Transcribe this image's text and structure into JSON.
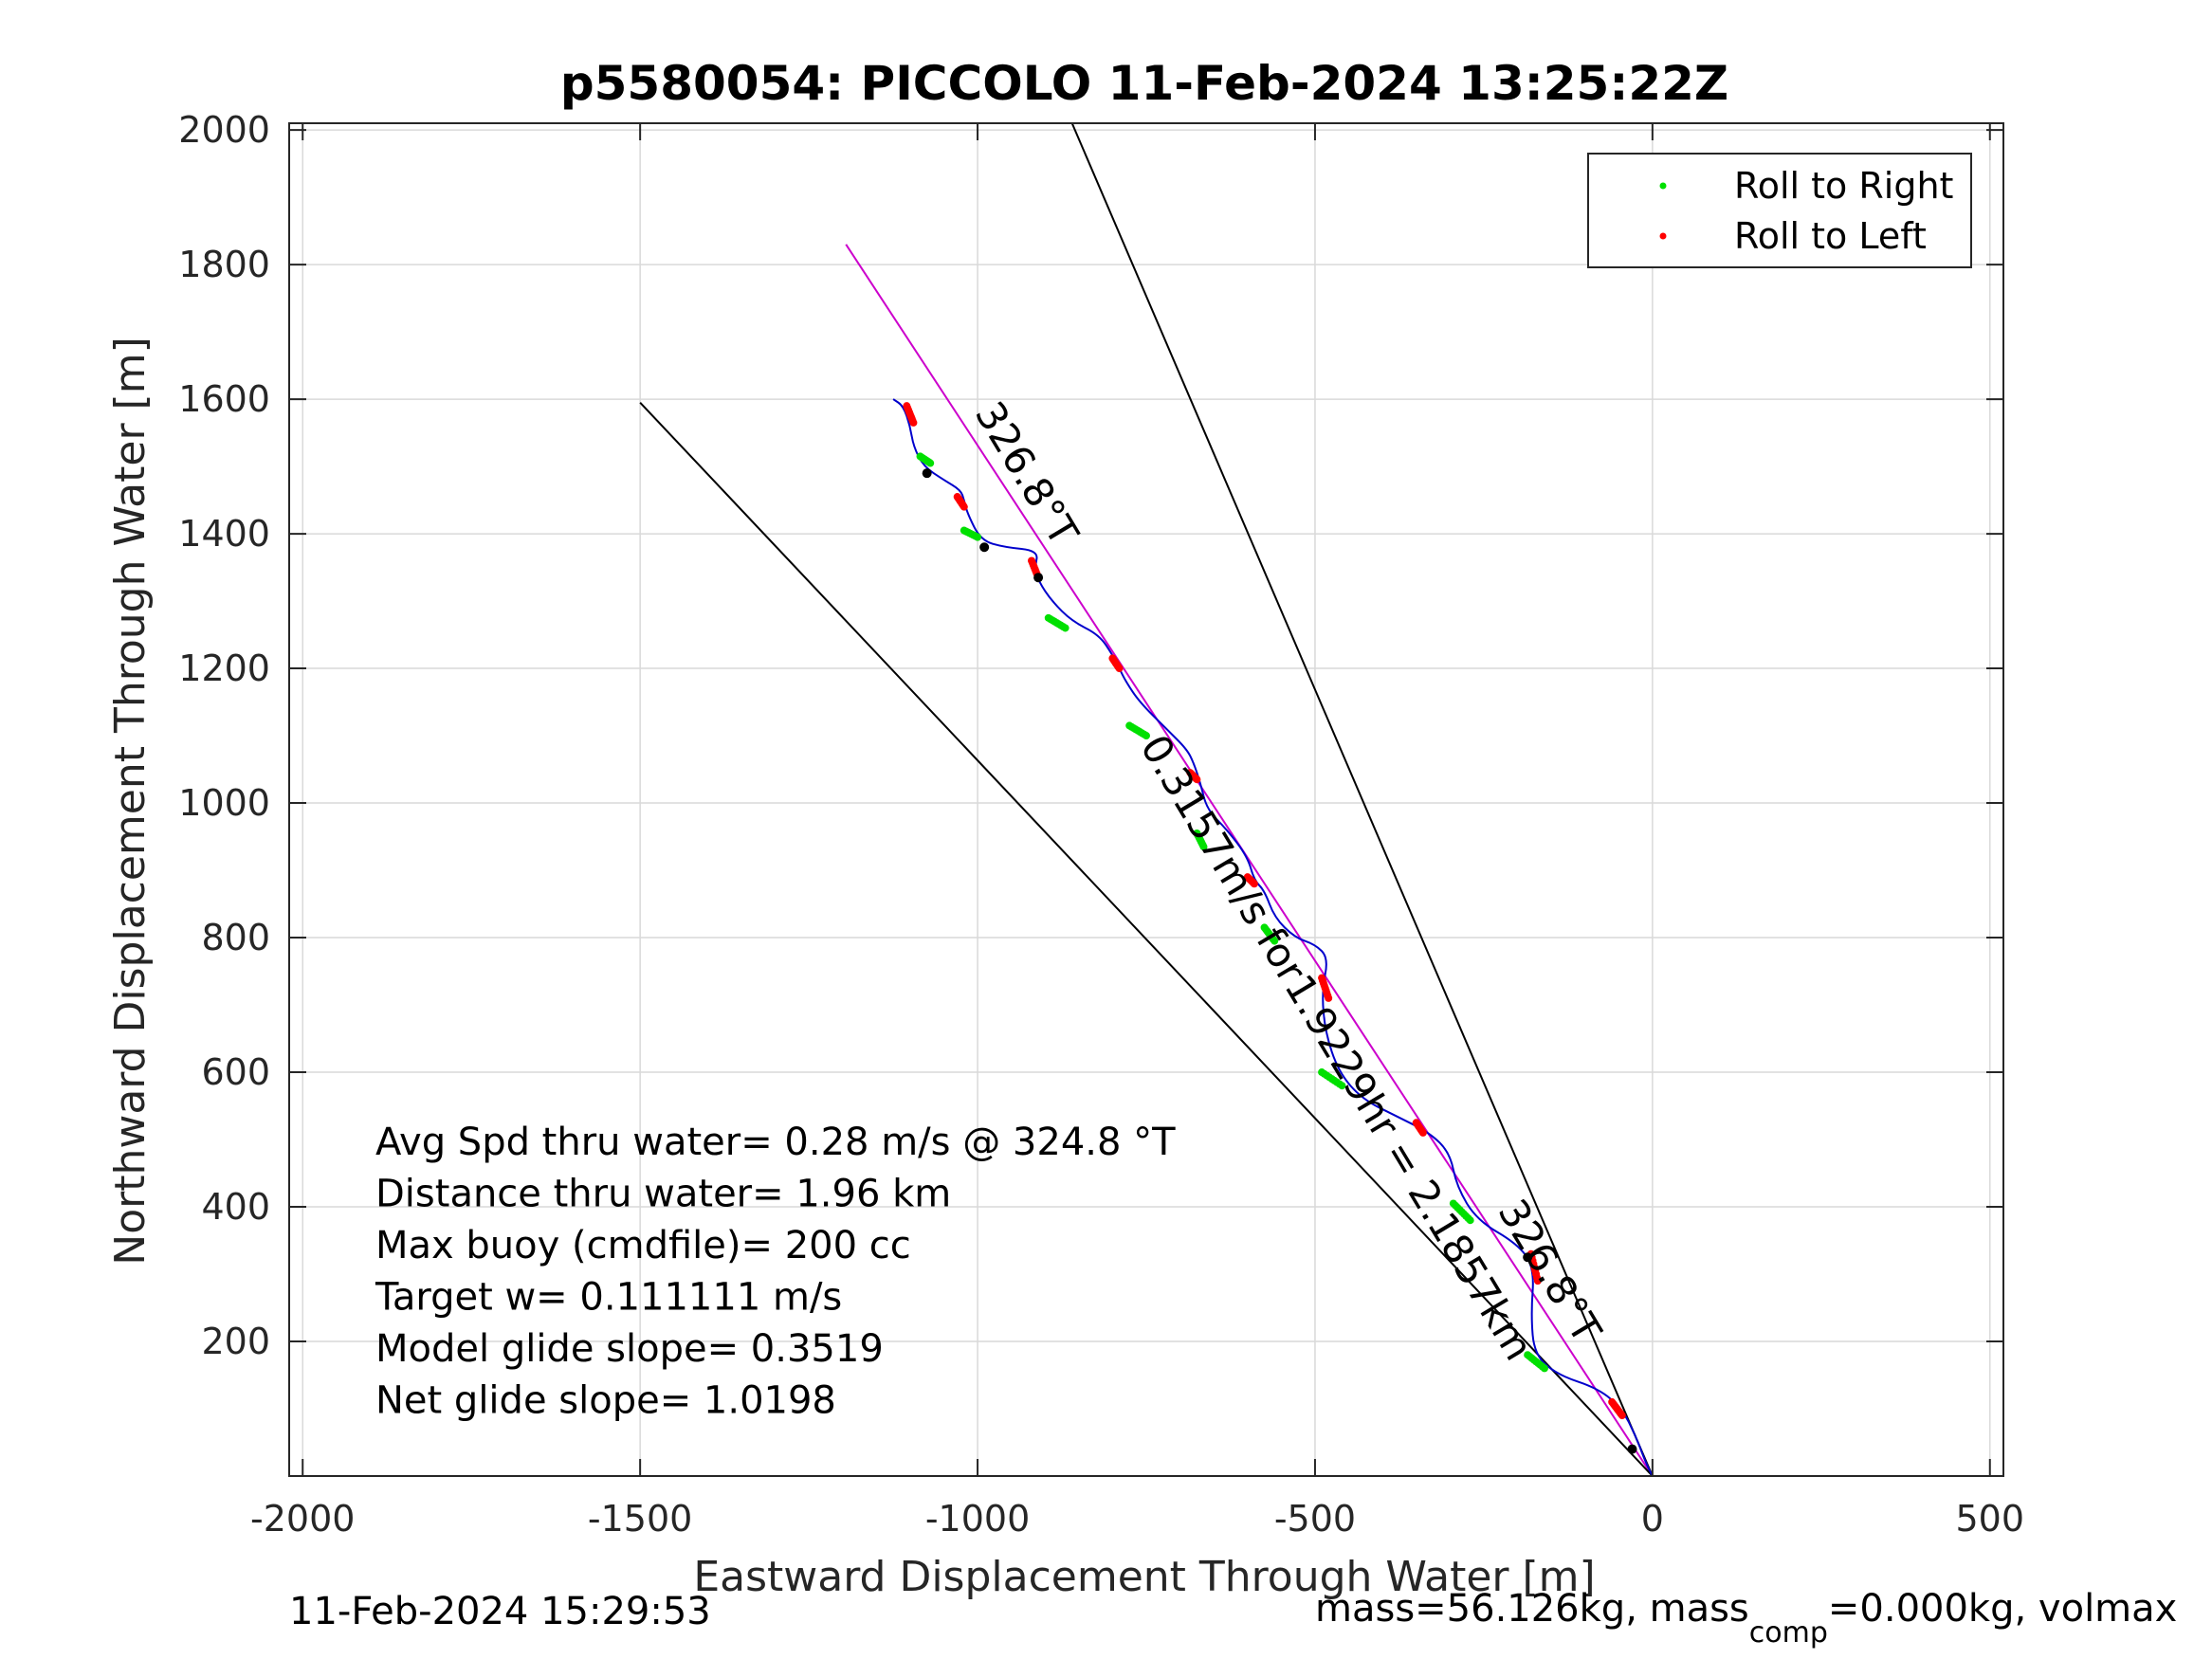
{
  "chart_data": {
    "type": "line",
    "title": "p5580054: PICCOLO 11-Feb-2024 13:25:22Z",
    "xlabel": "Eastward Displacement Through Water [m]",
    "ylabel": "Northward Displacement Through Water [m]",
    "xlim": [
      -2020,
      520
    ],
    "ylim": [
      0,
      2010
    ],
    "xticks": [
      -2000,
      -1500,
      -1000,
      -500,
      0,
      500
    ],
    "xtick_labels": [
      "-2000",
      "-1500",
      "-1000",
      "-500",
      "0",
      "500"
    ],
    "yticks": [
      200,
      400,
      600,
      800,
      1000,
      1200,
      1400,
      1600,
      1800,
      2000
    ],
    "ytick_labels": [
      "200",
      "400",
      "600",
      "800",
      "1000",
      "1200",
      "1400",
      "1600",
      "1800",
      "2000"
    ],
    "grid": true,
    "legend": {
      "placement": "top-right",
      "entries": [
        {
          "label": "Roll to Right",
          "color": "#00e000"
        },
        {
          "label": "Roll to Left",
          "color": "#ff0000"
        }
      ]
    },
    "track": {
      "name": "glider track",
      "color": "#0000cc",
      "x": [
        0,
        -10,
        -25,
        -45,
        -80,
        -140,
        -175,
        -180,
        -175,
        -200,
        -260,
        -290,
        -300,
        -330,
        -380,
        -430,
        -465,
        -485,
        -490,
        -480,
        -500,
        -530,
        -560,
        -575,
        -590,
        -600,
        -630,
        -660,
        -670,
        -680,
        -690,
        -720,
        -760,
        -780,
        -790,
        -800,
        -820,
        -860,
        -890,
        -910,
        -915,
        -910,
        -960,
        -995,
        -1015,
        -1020,
        -1025,
        -1050,
        -1080,
        -1095,
        -1100,
        -1110,
        -1125
      ],
      "y": [
        0,
        20,
        60,
        100,
        130,
        150,
        180,
        240,
        310,
        345,
        380,
        430,
        480,
        510,
        535,
        560,
        600,
        660,
        720,
        770,
        790,
        800,
        830,
        870,
        885,
        920,
        960,
        990,
        1030,
        1060,
        1080,
        1110,
        1150,
        1180,
        1200,
        1220,
        1250,
        1270,
        1300,
        1330,
        1350,
        1375,
        1380,
        1390,
        1430,
        1450,
        1465,
        1480,
        1500,
        1530,
        1560,
        1590,
        1600
      ]
    },
    "roll_right_segments": [
      {
        "x": [
          -160,
          -185
        ],
        "y": [
          160,
          180
        ]
      },
      {
        "x": [
          -270,
          -295
        ],
        "y": [
          380,
          405
        ]
      },
      {
        "x": [
          -460,
          -490
        ],
        "y": [
          580,
          600
        ]
      },
      {
        "x": [
          -560,
          -575
        ],
        "y": [
          795,
          815
        ]
      },
      {
        "x": [
          -665,
          -675
        ],
        "y": [
          935,
          955
        ]
      },
      {
        "x": [
          -750,
          -775
        ],
        "y": [
          1100,
          1115
        ]
      },
      {
        "x": [
          -870,
          -895
        ],
        "y": [
          1260,
          1275
        ]
      },
      {
        "x": [
          -1000,
          -1020
        ],
        "y": [
          1395,
          1405
        ]
      },
      {
        "x": [
          -1070,
          -1085
        ],
        "y": [
          1505,
          1515
        ]
      }
    ],
    "roll_left_segments": [
      {
        "x": [
          -45,
          -60
        ],
        "y": [
          90,
          110
        ]
      },
      {
        "x": [
          -170,
          -180
        ],
        "y": [
          290,
          330
        ]
      },
      {
        "x": [
          -340,
          -350
        ],
        "y": [
          510,
          525
        ]
      },
      {
        "x": [
          -480,
          -490
        ],
        "y": [
          710,
          740
        ]
      },
      {
        "x": [
          -590,
          -600
        ],
        "y": [
          880,
          890
        ]
      },
      {
        "x": [
          -675,
          -685
        ],
        "y": [
          1035,
          1045
        ]
      },
      {
        "x": [
          -790,
          -800
        ],
        "y": [
          1200,
          1215
        ]
      },
      {
        "x": [
          -910,
          -920
        ],
        "y": [
          1335,
          1360
        ]
      },
      {
        "x": [
          -1020,
          -1030
        ],
        "y": [
          1440,
          1455
        ]
      },
      {
        "x": [
          -1095,
          -1105
        ],
        "y": [
          1565,
          1590
        ]
      }
    ],
    "black_dots": [
      {
        "x": -1075,
        "y": 1490
      },
      {
        "x": -990,
        "y": 1380
      },
      {
        "x": -910,
        "y": 1335
      },
      {
        "x": -185,
        "y": 325
      },
      {
        "x": -30,
        "y": 40
      }
    ],
    "reference_lines": [
      {
        "name": "course-line",
        "color": "#cc00cc",
        "x": [
          0,
          -1195
        ],
        "y": [
          0,
          1830
        ]
      },
      {
        "name": "upper-bound-line",
        "color": "#000000",
        "x": [
          0,
          -860
        ],
        "y": [
          0,
          2010
        ]
      },
      {
        "name": "lower-bound-line",
        "color": "#000000",
        "x": [
          0,
          -1500
        ],
        "y": [
          0,
          1595
        ]
      }
    ],
    "annotations": [
      {
        "text": "326.8°T",
        "x": -1005,
        "y": 1580,
        "rotate": 59
      },
      {
        "text": "0.3157m/s for1.9229hr = 2.1857km",
        "x": -760,
        "y": 1085,
        "rotate": 59
      },
      {
        "text": "326.8°T",
        "x": -230,
        "y": 395,
        "rotate": 59
      }
    ],
    "stats": [
      "Avg Spd thru water=  0.28 m/s @ 324.8 °T",
      "Distance thru water=  1.96 km",
      "Max buoy (cmdfile)= 200 cc",
      "Target w= 0.111111 m/s",
      "Model glide slope= 0.3519",
      "Net glide slope= 1.0198"
    ]
  },
  "footer": {
    "timestamp": "11-Feb-2024 15:29:53",
    "mass_prefix": "mass=56.126kg, mass",
    "mass_subscript": "comp",
    "mass_suffix": "=0.000kg, volmax"
  },
  "colors": {
    "axis": "#262626",
    "grid": "#d9d9d9"
  }
}
